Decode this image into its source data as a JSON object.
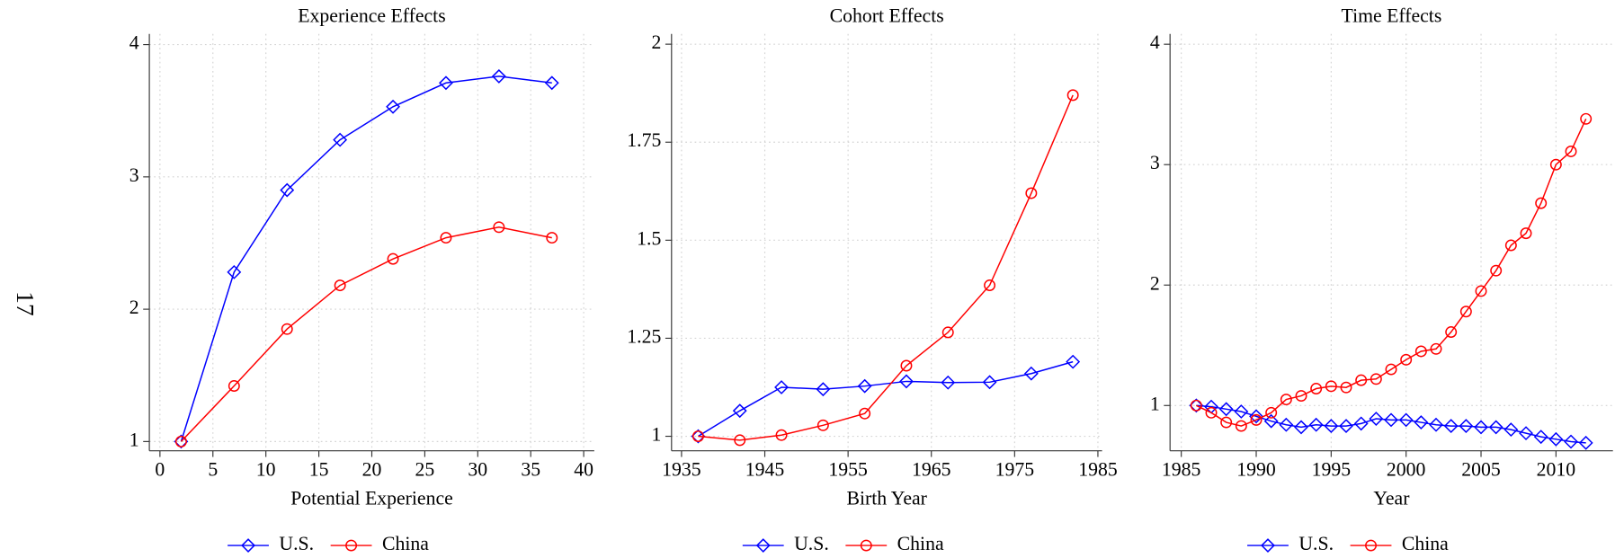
{
  "page_number": "17",
  "chart_data": [
    {
      "type": "line",
      "title": "Experience Effects",
      "x_label": "Potential Experience",
      "x": [
        2,
        7,
        12,
        17,
        22,
        27,
        32,
        37
      ],
      "series": [
        {
          "name": "U.S.",
          "color": "#0000ff",
          "marker": "diamond",
          "values": [
            1,
            2.28,
            2.9,
            3.28,
            3.53,
            3.71,
            3.76,
            3.71
          ]
        },
        {
          "name": "China",
          "color": "#ff0000",
          "marker": "circle",
          "values": [
            1,
            1.42,
            1.85,
            2.18,
            2.38,
            2.54,
            2.62,
            2.54
          ]
        }
      ],
      "xlim": [
        -1,
        41
      ],
      "xticks": [
        0,
        5,
        10,
        15,
        20,
        25,
        30,
        35,
        40
      ],
      "ylim": [
        0.93,
        4.08
      ],
      "yticks": [
        1,
        2,
        3,
        4
      ],
      "grid": true,
      "legend": "bottom"
    },
    {
      "type": "line",
      "title": "Cohort Effects",
      "x_label": "Birth Year",
      "x": [
        1937,
        1942,
        1947,
        1952,
        1957,
        1962,
        1967,
        1972,
        1977,
        1982
      ],
      "series": [
        {
          "name": "U.S.",
          "color": "#0000ff",
          "marker": "diamond",
          "values": [
            1,
            1.065,
            1.125,
            1.12,
            1.128,
            1.14,
            1.137,
            1.138,
            1.16,
            1.19
          ]
        },
        {
          "name": "China",
          "color": "#ff0000",
          "marker": "circle",
          "values": [
            1,
            0.99,
            1.003,
            1.028,
            1.058,
            1.18,
            1.265,
            1.385,
            1.62,
            1.87
          ]
        }
      ],
      "xlim": [
        1933.8,
        1985.5
      ],
      "xticks": [
        1935,
        1945,
        1955,
        1965,
        1975,
        1985
      ],
      "ylim": [
        0.963,
        2.026
      ],
      "yticks": [
        1,
        1.25,
        1.5,
        1.75,
        2
      ],
      "grid": true,
      "legend": "bottom"
    },
    {
      "type": "line",
      "title": "Time Effects",
      "x_label": "Year",
      "x": [
        1986,
        1987,
        1988,
        1989,
        1990,
        1991,
        1992,
        1993,
        1994,
        1995,
        1996,
        1997,
        1998,
        1999,
        2000,
        2001,
        2002,
        2003,
        2004,
        2005,
        2006,
        2007,
        2008,
        2009,
        2010,
        2011,
        2012
      ],
      "series": [
        {
          "name": "U.S.",
          "color": "#0000ff",
          "marker": "diamond",
          "values": [
            1,
            0.99,
            0.97,
            0.95,
            0.91,
            0.87,
            0.84,
            0.82,
            0.84,
            0.83,
            0.83,
            0.85,
            0.89,
            0.88,
            0.88,
            0.86,
            0.84,
            0.83,
            0.83,
            0.82,
            0.82,
            0.8,
            0.77,
            0.74,
            0.72,
            0.7,
            0.69
          ]
        },
        {
          "name": "China",
          "color": "#ff0000",
          "marker": "circle",
          "values": [
            1,
            0.94,
            0.86,
            0.83,
            0.88,
            0.94,
            1.05,
            1.08,
            1.14,
            1.16,
            1.15,
            1.21,
            1.22,
            1.3,
            1.38,
            1.45,
            1.47,
            1.61,
            1.78,
            1.95,
            2.12,
            2.33,
            2.43,
            2.68,
            3.0,
            3.11,
            3.38
          ]
        }
      ],
      "xlim": [
        1984.25,
        2013.8
      ],
      "xticks": [
        1985,
        1990,
        1995,
        2000,
        2005,
        2010
      ],
      "ylim": [
        0.624,
        4.085
      ],
      "yticks": [
        1,
        2,
        3,
        4
      ],
      "grid": true,
      "legend": "bottom"
    }
  ]
}
